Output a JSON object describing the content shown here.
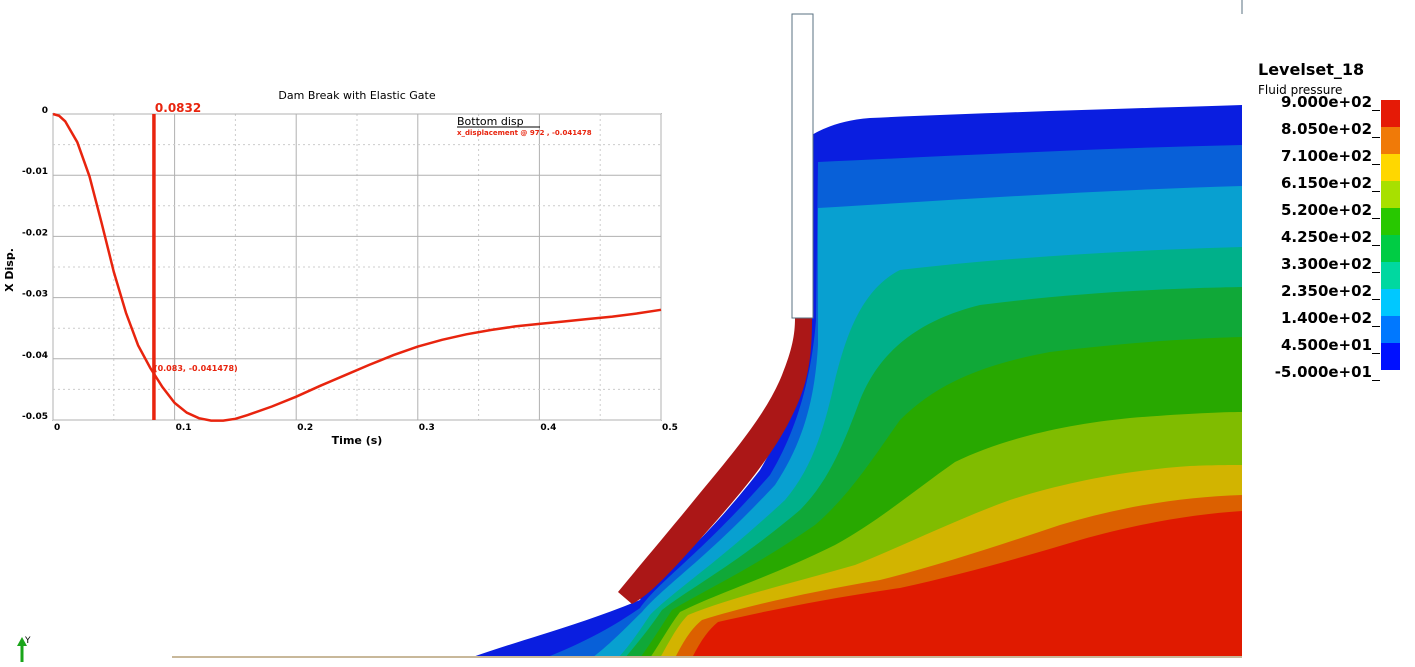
{
  "legend": {
    "title": "Levelset_18",
    "subtitle": "Fluid pressure",
    "labels": [
      "9.000e+02",
      "8.050e+02",
      "7.100e+02",
      "6.150e+02",
      "5.200e+02",
      "4.250e+02",
      "3.300e+02",
      "2.350e+02",
      "1.400e+02",
      "4.500e+01",
      "-5.000e+01"
    ],
    "colors": [
      "#e51a06",
      "#f07a08",
      "#ffd700",
      "#a8e000",
      "#28c800",
      "#00cc44",
      "#00d8a0",
      "#00c8ff",
      "#0078ff",
      "#0010ff"
    ]
  },
  "field_colors": [
    "#0a1ee0",
    "#0860d8",
    "#08a0d0",
    "#00b08a",
    "#10a838",
    "#28a800",
    "#80bc00",
    "#d2b400",
    "#dc6000",
    "#e01a00"
  ],
  "gate_color": "#ab1717",
  "axis_triad_label": "Y",
  "chart_data": {
    "type": "line",
    "title": "Dam Break with Elastic Gate",
    "xlabel": "Time (s)",
    "ylabel": "X Disp.",
    "xlim": [
      0,
      0.5
    ],
    "ylim": [
      -0.05,
      0
    ],
    "xticks": [
      "0",
      "0.1",
      "0.2",
      "0.3",
      "0.4",
      "0.5"
    ],
    "xtick_values": [
      0,
      0.1,
      0.2,
      0.3,
      0.4,
      0.5
    ],
    "yticks": [
      "0",
      "-0.01",
      "-0.02",
      "-0.03",
      "-0.04",
      "-0.05"
    ],
    "ytick_values": [
      0,
      -0.01,
      -0.02,
      -0.03,
      -0.04,
      -0.05
    ],
    "grid": true,
    "series": [
      {
        "name": "Bottom disp",
        "color": "#e8240e",
        "x": [
          0,
          0.005,
          0.01,
          0.02,
          0.03,
          0.04,
          0.05,
          0.06,
          0.07,
          0.08,
          0.09,
          0.1,
          0.11,
          0.12,
          0.13,
          0.14,
          0.15,
          0.16,
          0.18,
          0.2,
          0.22,
          0.24,
          0.26,
          0.28,
          0.3,
          0.32,
          0.34,
          0.36,
          0.38,
          0.4,
          0.42,
          0.44,
          0.46,
          0.48,
          0.5
        ],
        "y": [
          0,
          -0.0003,
          -0.0012,
          -0.0046,
          -0.0102,
          -0.0178,
          -0.0258,
          -0.0325,
          -0.0378,
          -0.0415,
          -0.0446,
          -0.0472,
          -0.0488,
          -0.0497,
          -0.0501,
          -0.0501,
          -0.0498,
          -0.0492,
          -0.0478,
          -0.0462,
          -0.0444,
          -0.0427,
          -0.041,
          -0.0394,
          -0.038,
          -0.0369,
          -0.036,
          -0.0353,
          -0.0347,
          -0.0343,
          -0.0339,
          -0.0335,
          -0.0331,
          -0.0326,
          -0.032
        ]
      }
    ],
    "legend_entry": "Bottom disp",
    "legend_note": "x_displacement @ 972 , -0.041478",
    "cursor": {
      "x": 0.083,
      "label": "0.0832"
    },
    "point_label": "(0.083, -0.041478)"
  }
}
